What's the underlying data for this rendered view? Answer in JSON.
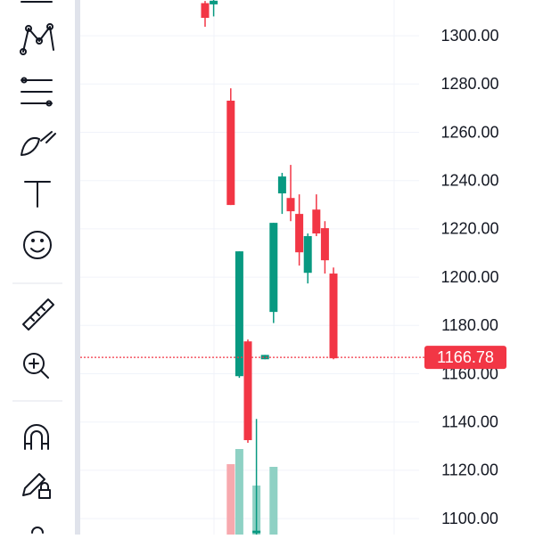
{
  "chart_data": {
    "type": "candlestick",
    "candles": [
      {
        "open": 1313.5,
        "high": 1314.4,
        "low": 1303.7,
        "close": 1307.4
      },
      {
        "open": 1313,
        "high": 1314.8,
        "low": 1308,
        "close": 1314.5
      },
      null,
      {
        "open": 1273.1,
        "high": 1278.2,
        "low": 1229.9,
        "close": 1229.9
      },
      {
        "open": 1159,
        "high": 1210.7,
        "low": 1158.3,
        "close": 1210.7
      },
      {
        "open": 1173.4,
        "high": 1174.2,
        "low": 1131.4,
        "close": 1132.5
      },
      {
        "open": 1094,
        "high": 1141.3,
        "low": 1093.4,
        "close": 1095
      },
      {
        "open": 1166,
        "high": 1167.8,
        "low": 1166,
        "close": 1167.8
      },
      {
        "open": 1185.6,
        "high": 1222.5,
        "low": 1181,
        "close": 1222.5
      },
      {
        "open": 1234.7,
        "high": 1243.2,
        "low": 1226.2,
        "close": 1241.7
      },
      {
        "open": 1232.8,
        "high": 1246.5,
        "low": 1223.2,
        "close": 1227.3
      },
      {
        "open": 1226.2,
        "high": 1234.3,
        "low": 1204.8,
        "close": 1210.3
      },
      {
        "open": 1201.8,
        "high": 1218.1,
        "low": 1197.4,
        "close": 1217
      },
      {
        "open": 1228,
        "high": 1234.3,
        "low": 1217,
        "close": 1218.1
      },
      {
        "open": 1220.3,
        "high": 1223.2,
        "low": 1201.5,
        "close": 1207
      },
      {
        "open": 1201.5,
        "high": 1204,
        "low": 1166,
        "close": 1166.4
      }
    ],
    "volume": [
      null,
      null,
      null,
      39.5,
      48,
      null,
      27.5,
      null,
      38,
      null,
      null,
      null,
      null,
      null,
      null,
      null
    ],
    "volume_lim": [
      0,
      100
    ],
    "up_color": "#089981",
    "down_color": "#f23645",
    "up_volume_color": "#8fd1c4",
    "down_volume_color": "#f7a9ae",
    "last_price": {
      "value": 1166.78,
      "label": "1166.78"
    },
    "ylim": [
      1093.4,
      1314.8
    ],
    "yticks": [
      {
        "value": 1300,
        "label": "1300.00"
      },
      {
        "value": 1280,
        "label": "1280.00"
      },
      {
        "value": 1260,
        "label": "1260.00"
      },
      {
        "value": 1240,
        "label": "1240.00"
      },
      {
        "value": 1220,
        "label": "1220.00"
      },
      {
        "value": 1200,
        "label": "1200.00"
      },
      {
        "value": 1180,
        "label": "1180.00"
      },
      {
        "value": 1160,
        "label": "1160.00"
      },
      {
        "value": 1140,
        "label": "1140.00"
      },
      {
        "value": 1120,
        "label": "1120.00"
      },
      {
        "value": 1100,
        "label": "1100.00"
      }
    ],
    "grid": true
  }
}
